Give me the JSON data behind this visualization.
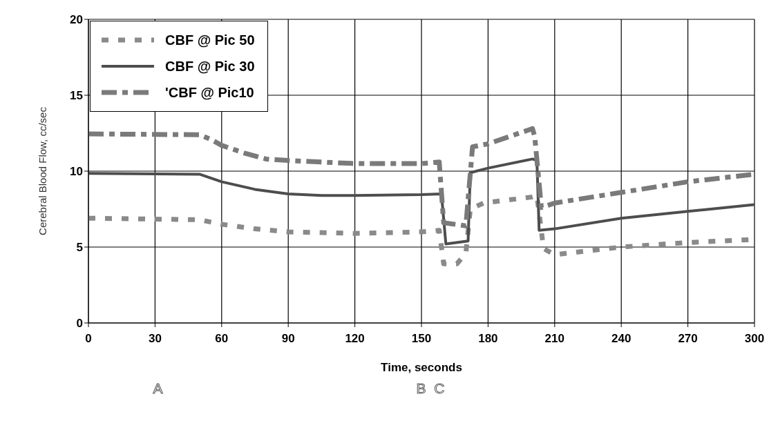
{
  "chart_data": {
    "type": "line",
    "xlabel": "Time, seconds",
    "ylabel": "Cerebral Blood Flow,  cc/sec",
    "xlim": [
      0,
      300
    ],
    "xticks": [
      0,
      30,
      60,
      90,
      120,
      150,
      180,
      210,
      240,
      270,
      300
    ],
    "ylim": [
      0,
      20
    ],
    "yticks": [
      0,
      5,
      10,
      15,
      20
    ],
    "grid": true,
    "legend": "top left",
    "marker": "none",
    "series": [
      {
        "name": "CBF @ Pic 50",
        "color": "#8a8a8a",
        "line_style": "dashed",
        "x": [
          0,
          50,
          60,
          75,
          90,
          120,
          150,
          158,
          160,
          166,
          170,
          172,
          178,
          200,
          202,
          205,
          210,
          240,
          270,
          300
        ],
        "values": [
          6.9,
          6.8,
          6.5,
          6.2,
          6.0,
          5.9,
          6.0,
          6.1,
          3.9,
          3.9,
          4.6,
          7.5,
          7.9,
          8.3,
          8.4,
          4.9,
          4.5,
          5.0,
          5.3,
          5.5
        ]
      },
      {
        "name": "CBF @ Pic 30",
        "color": "#4d4d4d",
        "line_style": "solid",
        "x": [
          0,
          50,
          60,
          75,
          90,
          105,
          120,
          150,
          159,
          161,
          171,
          172,
          180,
          200,
          202,
          203,
          210,
          240,
          270,
          300
        ],
        "values": [
          9.85,
          9.8,
          9.3,
          8.8,
          8.5,
          8.4,
          8.4,
          8.45,
          8.5,
          5.2,
          5.4,
          9.9,
          10.2,
          10.8,
          10.7,
          6.1,
          6.2,
          6.9,
          7.35,
          7.8
        ]
      },
      {
        "name": "'CBF @ Pic10",
        "color": "#7a7a7a",
        "line_style": "dashdot",
        "x": [
          0,
          50,
          55,
          60,
          70,
          80,
          90,
          120,
          150,
          158,
          160,
          170,
          173,
          180,
          190,
          200,
          201,
          204,
          210,
          240,
          270,
          300
        ],
        "values": [
          12.45,
          12.4,
          12.1,
          11.7,
          11.2,
          10.8,
          10.7,
          10.5,
          10.5,
          10.6,
          6.6,
          6.4,
          11.6,
          11.8,
          12.3,
          12.8,
          12.3,
          7.6,
          7.9,
          8.6,
          9.3,
          9.8
        ]
      }
    ],
    "annotations": [
      "A",
      "B",
      "C"
    ]
  }
}
